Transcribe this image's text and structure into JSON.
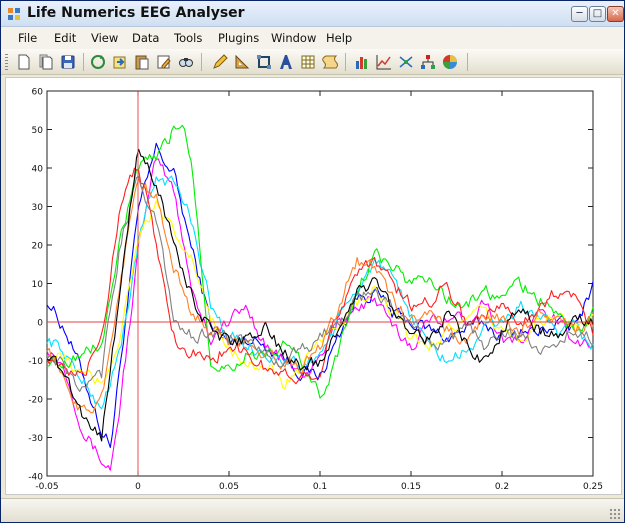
{
  "window": {
    "title": "Life Numerics EEG Analyser",
    "controls": [
      "minimize",
      "maximize",
      "close"
    ]
  },
  "menu": {
    "items": [
      "File",
      "Edit",
      "View",
      "Data",
      "Tools",
      "Plugins",
      "Window",
      "Help"
    ]
  },
  "toolbar": {
    "groups": [
      [
        "new-file-icon",
        "copy-document-icon",
        "save-icon"
      ],
      [
        "refresh-icon",
        "import-icon",
        "paste-icon",
        "edit-note-icon",
        "find-icon"
      ],
      [
        "pencil-icon",
        "triangle-ruler-icon",
        "crop-icon",
        "font-icon",
        "table-icon",
        "script-icon"
      ],
      [
        "bar-chart-icon",
        "line-chart-icon",
        "scatter-icon",
        "tree-icon",
        "globe-icon"
      ]
    ]
  },
  "chart_data": {
    "type": "line",
    "title": "",
    "xlabel": "",
    "ylabel": "",
    "xlim": [
      -0.05,
      0.25
    ],
    "ylim": [
      -40,
      60
    ],
    "xticks": [
      "-0.05",
      "0",
      "0.05",
      "0.1",
      "0.15",
      "0.2",
      "0.25"
    ],
    "yticks": [
      "60",
      "50",
      "40",
      "30",
      "20",
      "10",
      "0",
      "-10",
      "-20",
      "-30",
      "-40"
    ],
    "reference_lines": {
      "x": 0,
      "y": 0,
      "color": "#e04040"
    },
    "series": [
      {
        "color": "#0000ff",
        "x": [
          -0.05,
          -0.04,
          -0.03,
          -0.02,
          -0.015,
          -0.01,
          0,
          0.01,
          0.02,
          0.03,
          0.04,
          0.05,
          0.06,
          0.07,
          0.08,
          0.09,
          0.1,
          0.11,
          0.12,
          0.13,
          0.14,
          0.15,
          0.16,
          0.17,
          0.18,
          0.19,
          0.2,
          0.21,
          0.22,
          0.23,
          0.24,
          0.25
        ],
        "y": [
          6,
          -2,
          -14,
          -28,
          -32,
          -12,
          28,
          45,
          38,
          18,
          0,
          -6,
          -4,
          -6,
          -9,
          -13,
          -14,
          -4,
          6,
          8,
          2,
          0,
          -2,
          -4,
          -2,
          0,
          -4,
          -2,
          -3,
          0,
          -2,
          10
        ]
      },
      {
        "color": "#ff00ff",
        "x": [
          -0.05,
          -0.04,
          -0.03,
          -0.02,
          -0.015,
          -0.01,
          0,
          0.01,
          0.02,
          0.03,
          0.04,
          0.05,
          0.06,
          0.07,
          0.08,
          0.09,
          0.1,
          0.11,
          0.12,
          0.13,
          0.14,
          0.15,
          0.16,
          0.17,
          0.18,
          0.19,
          0.2,
          0.21,
          0.22,
          0.23,
          0.24,
          0.25
        ],
        "y": [
          -6,
          -12,
          -28,
          -36,
          -38,
          -22,
          18,
          42,
          34,
          8,
          -4,
          0,
          4,
          -6,
          -10,
          -14,
          -10,
          0,
          4,
          6,
          -2,
          -6,
          0,
          2,
          0,
          6,
          -4,
          -6,
          2,
          0,
          -4,
          -6
        ]
      },
      {
        "color": "#00e0ff",
        "x": [
          -0.05,
          -0.04,
          -0.03,
          -0.02,
          -0.01,
          0,
          0.01,
          0.02,
          0.03,
          0.04,
          0.05,
          0.06,
          0.07,
          0.08,
          0.09,
          0.1,
          0.11,
          0.12,
          0.13,
          0.14,
          0.15,
          0.16,
          0.17,
          0.18,
          0.19,
          0.2,
          0.21,
          0.22,
          0.23,
          0.24,
          0.25
        ],
        "y": [
          -4,
          -8,
          -16,
          -22,
          -8,
          20,
          38,
          36,
          26,
          4,
          -4,
          -6,
          -8,
          -10,
          -12,
          -8,
          0,
          8,
          16,
          10,
          2,
          -6,
          -10,
          -8,
          -2,
          0,
          4,
          2,
          -4,
          -2,
          -6
        ]
      },
      {
        "color": "#ffff00",
        "x": [
          -0.05,
          -0.04,
          -0.03,
          -0.02,
          -0.01,
          0,
          0.01,
          0.02,
          0.03,
          0.04,
          0.05,
          0.06,
          0.07,
          0.08,
          0.09,
          0.1,
          0.11,
          0.12,
          0.13,
          0.14,
          0.15,
          0.16,
          0.17,
          0.18,
          0.19,
          0.2,
          0.21,
          0.22,
          0.23,
          0.24,
          0.25
        ],
        "y": [
          -8,
          -10,
          -14,
          -16,
          -4,
          22,
          30,
          22,
          16,
          0,
          -6,
          -10,
          -12,
          -16,
          -12,
          -6,
          0,
          4,
          8,
          2,
          -4,
          -6,
          -2,
          0,
          2,
          -2,
          -4,
          0,
          2,
          -2,
          0
        ]
      },
      {
        "color": "#00ee00",
        "x": [
          -0.05,
          -0.04,
          -0.03,
          -0.02,
          -0.01,
          0,
          0.01,
          0.02,
          0.025,
          0.03,
          0.04,
          0.05,
          0.06,
          0.07,
          0.08,
          0.09,
          0.1,
          0.11,
          0.12,
          0.13,
          0.14,
          0.15,
          0.16,
          0.17,
          0.18,
          0.19,
          0.2,
          0.21,
          0.22,
          0.23,
          0.24,
          0.25
        ],
        "y": [
          -10,
          -10,
          -8,
          -6,
          20,
          40,
          42,
          50,
          52,
          40,
          -10,
          -12,
          -8,
          -10,
          -6,
          -10,
          -20,
          -8,
          8,
          18,
          14,
          10,
          12,
          6,
          4,
          8,
          6,
          10,
          6,
          2,
          -2,
          2
        ]
      },
      {
        "color": "#ff2020",
        "x": [
          -0.05,
          -0.04,
          -0.03,
          -0.02,
          -0.01,
          -0.005,
          0,
          0.01,
          0.02,
          0.03,
          0.04,
          0.05,
          0.06,
          0.07,
          0.08,
          0.09,
          0.1,
          0.11,
          0.12,
          0.13,
          0.14,
          0.15,
          0.16,
          0.17,
          0.18,
          0.19,
          0.2,
          0.21,
          0.22,
          0.23,
          0.24,
          0.25
        ],
        "y": [
          -8,
          -14,
          -14,
          -4,
          30,
          38,
          42,
          20,
          -4,
          -8,
          -10,
          -6,
          -8,
          -12,
          -14,
          -14,
          -12,
          2,
          14,
          16,
          10,
          4,
          6,
          10,
          0,
          2,
          4,
          0,
          4,
          8,
          6,
          -2
        ]
      },
      {
        "color": "#ff7f27",
        "x": [
          -0.05,
          -0.04,
          -0.03,
          -0.02,
          -0.01,
          0,
          0.01,
          0.02,
          0.03,
          0.04,
          0.05,
          0.06,
          0.07,
          0.08,
          0.09,
          0.1,
          0.11,
          0.12,
          0.13,
          0.14,
          0.15,
          0.16,
          0.17,
          0.18,
          0.19,
          0.2,
          0.21,
          0.22,
          0.23,
          0.24,
          0.25
        ],
        "y": [
          -6,
          -16,
          -24,
          -20,
          10,
          38,
          32,
          14,
          2,
          -2,
          -6,
          -4,
          -8,
          -10,
          -12,
          -6,
          4,
          16,
          14,
          6,
          0,
          4,
          -2,
          -6,
          2,
          0,
          -2,
          2,
          0,
          -2,
          0
        ]
      },
      {
        "color": "#808080",
        "x": [
          -0.05,
          -0.04,
          -0.03,
          -0.02,
          -0.01,
          0,
          0.01,
          0.02,
          0.03,
          0.04,
          0.05,
          0.06,
          0.07,
          0.08,
          0.09,
          0.1,
          0.11,
          0.12,
          0.13,
          0.14,
          0.15,
          0.16,
          0.17,
          0.18,
          0.19,
          0.2,
          0.21,
          0.22,
          0.23,
          0.24,
          0.25
        ],
        "y": [
          -8,
          -12,
          -18,
          -14,
          20,
          38,
          26,
          0,
          -4,
          -2,
          -4,
          -6,
          -8,
          -10,
          -8,
          -4,
          0,
          6,
          8,
          4,
          -2,
          -6,
          -4,
          -2,
          -6,
          -2,
          -4,
          -8,
          -6,
          -2,
          -4
        ]
      },
      {
        "color": "#000000",
        "x": [
          -0.05,
          -0.04,
          -0.03,
          -0.02,
          -0.01,
          0,
          0.005,
          0.01,
          0.02,
          0.03,
          0.04,
          0.05,
          0.06,
          0.07,
          0.08,
          0.09,
          0.1,
          0.11,
          0.12,
          0.13,
          0.14,
          0.15,
          0.16,
          0.17,
          0.18,
          0.19,
          0.2,
          0.21,
          0.22,
          0.23,
          0.24,
          0.25
        ],
        "y": [
          -8,
          -14,
          -24,
          -30,
          8,
          44,
          42,
          36,
          20,
          6,
          -2,
          -6,
          -4,
          -2,
          -8,
          -12,
          -10,
          -2,
          8,
          10,
          4,
          -2,
          -4,
          2,
          -6,
          -10,
          -2,
          4,
          -2,
          -4,
          0,
          0
        ]
      }
    ]
  }
}
